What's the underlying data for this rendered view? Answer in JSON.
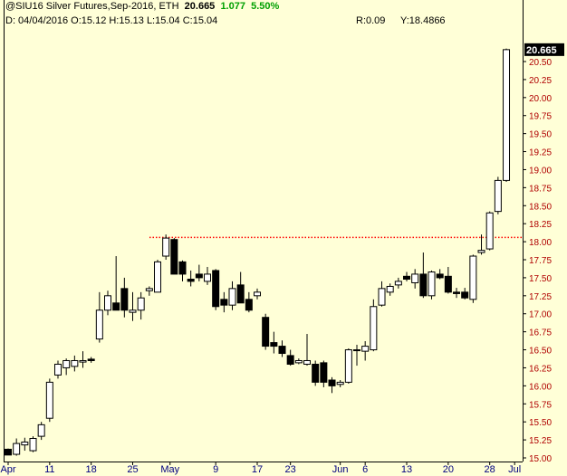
{
  "header": {
    "symbol_line": "@SIU16 Silver Futures,Sep-2016, ETH",
    "last": "20.665",
    "change": "1.077",
    "change_pct": "5.50%",
    "ohlc_line": "D: 04/04/2016 O:15.12 H:15.13 L:15.04 C:15.04",
    "r_value": "R:0.09",
    "y_value": "Y:18.4866"
  },
  "colors": {
    "background": "#ffffd7",
    "axis_text": "#b00000",
    "date_text": "#000080",
    "up_candle": "#ffffff",
    "down_candle": "#000000",
    "reference_line": "#ff0000",
    "last_price_box": "#000000"
  },
  "chart_data": {
    "type": "candlestick",
    "ylim": [
      15.0,
      20.75
    ],
    "yticks": [
      "15.00",
      "15.25",
      "15.50",
      "15.75",
      "16.00",
      "16.25",
      "16.50",
      "16.75",
      "17.00",
      "17.25",
      "17.50",
      "17.75",
      "18.00",
      "18.25",
      "18.50",
      "18.75",
      "19.00",
      "19.25",
      "19.50",
      "19.75",
      "20.00",
      "20.25",
      "20.50"
    ],
    "last_price_label": "20.665",
    "reference_line": 18.06,
    "x_labels": [
      "Apr",
      "11",
      "18",
      "25",
      "May",
      "9",
      "17",
      "23",
      "Jun",
      "6",
      "13",
      "20",
      "28",
      "Jul"
    ],
    "candles": [
      {
        "o": 15.12,
        "h": 15.13,
        "l": 15.04,
        "c": 15.04
      },
      {
        "o": 15.05,
        "h": 15.27,
        "l": 15.03,
        "c": 15.2
      },
      {
        "o": 15.18,
        "h": 15.28,
        "l": 15.1,
        "c": 15.22
      },
      {
        "o": 15.1,
        "h": 15.3,
        "l": 15.08,
        "c": 15.27
      },
      {
        "o": 15.3,
        "h": 15.5,
        "l": 15.25,
        "c": 15.46
      },
      {
        "o": 15.55,
        "h": 16.1,
        "l": 15.5,
        "c": 16.05
      },
      {
        "o": 16.15,
        "h": 16.35,
        "l": 16.1,
        "c": 16.3
      },
      {
        "o": 16.25,
        "h": 16.38,
        "l": 16.15,
        "c": 16.35
      },
      {
        "o": 16.27,
        "h": 16.42,
        "l": 16.2,
        "c": 16.35
      },
      {
        "o": 16.33,
        "h": 16.48,
        "l": 16.25,
        "c": 16.35
      },
      {
        "o": 16.37,
        "h": 16.4,
        "l": 16.32,
        "c": 16.35
      },
      {
        "o": 16.65,
        "h": 17.3,
        "l": 16.6,
        "c": 17.05
      },
      {
        "o": 17.05,
        "h": 17.32,
        "l": 16.98,
        "c": 17.25
      },
      {
        "o": 17.15,
        "h": 17.8,
        "l": 17.05,
        "c": 17.05
      },
      {
        "o": 17.35,
        "h": 17.5,
        "l": 16.95,
        "c": 17.05
      },
      {
        "o": 17.02,
        "h": 17.3,
        "l": 16.9,
        "c": 17.05
      },
      {
        "o": 17.05,
        "h": 17.3,
        "l": 16.92,
        "c": 17.22
      },
      {
        "o": 17.32,
        "h": 17.38,
        "l": 17.25,
        "c": 17.35
      },
      {
        "o": 17.3,
        "h": 17.75,
        "l": 17.3,
        "c": 17.72
      },
      {
        "o": 17.8,
        "h": 18.1,
        "l": 17.75,
        "c": 18.05
      },
      {
        "o": 18.03,
        "h": 18.05,
        "l": 17.55,
        "c": 17.55
      },
      {
        "o": 17.72,
        "h": 17.74,
        "l": 17.45,
        "c": 17.55
      },
      {
        "o": 17.48,
        "h": 17.6,
        "l": 17.38,
        "c": 17.45
      },
      {
        "o": 17.55,
        "h": 17.68,
        "l": 17.45,
        "c": 17.5
      },
      {
        "o": 17.45,
        "h": 17.65,
        "l": 17.4,
        "c": 17.55
      },
      {
        "o": 17.6,
        "h": 17.62,
        "l": 17.05,
        "c": 17.1
      },
      {
        "o": 17.2,
        "h": 17.3,
        "l": 17.02,
        "c": 17.12
      },
      {
        "o": 17.12,
        "h": 17.45,
        "l": 17.05,
        "c": 17.35
      },
      {
        "o": 17.4,
        "h": 17.58,
        "l": 17.15,
        "c": 17.15
      },
      {
        "o": 17.2,
        "h": 17.3,
        "l": 17.02,
        "c": 17.05
      },
      {
        "o": 17.25,
        "h": 17.35,
        "l": 17.2,
        "c": 17.3
      },
      {
        "o": 16.95,
        "h": 17.0,
        "l": 16.5,
        "c": 16.55
      },
      {
        "o": 16.6,
        "h": 16.75,
        "l": 16.45,
        "c": 16.55
      },
      {
        "o": 16.55,
        "h": 16.63,
        "l": 16.4,
        "c": 16.45
      },
      {
        "o": 16.42,
        "h": 16.5,
        "l": 16.28,
        "c": 16.3
      },
      {
        "o": 16.32,
        "h": 16.38,
        "l": 16.3,
        "c": 16.35
      },
      {
        "o": 16.3,
        "h": 16.72,
        "l": 16.28,
        "c": 16.35
      },
      {
        "o": 16.3,
        "h": 16.35,
        "l": 16.0,
        "c": 16.05
      },
      {
        "o": 16.32,
        "h": 16.35,
        "l": 15.98,
        "c": 16.05
      },
      {
        "o": 16.08,
        "h": 16.12,
        "l": 15.9,
        "c": 16.0
      },
      {
        "o": 16.02,
        "h": 16.08,
        "l": 15.98,
        "c": 16.05
      },
      {
        "o": 16.05,
        "h": 16.52,
        "l": 16.03,
        "c": 16.5
      },
      {
        "o": 16.5,
        "h": 16.57,
        "l": 16.28,
        "c": 16.5
      },
      {
        "o": 16.48,
        "h": 16.62,
        "l": 16.35,
        "c": 16.55
      },
      {
        "o": 16.5,
        "h": 17.2,
        "l": 16.48,
        "c": 17.1
      },
      {
        "o": 17.12,
        "h": 17.45,
        "l": 17.1,
        "c": 17.35
      },
      {
        "o": 17.3,
        "h": 17.42,
        "l": 17.25,
        "c": 17.38
      },
      {
        "o": 17.4,
        "h": 17.5,
        "l": 17.35,
        "c": 17.45
      },
      {
        "o": 17.52,
        "h": 17.58,
        "l": 17.45,
        "c": 17.48
      },
      {
        "o": 17.43,
        "h": 17.62,
        "l": 17.35,
        "c": 17.55
      },
      {
        "o": 17.55,
        "h": 17.85,
        "l": 17.22,
        "c": 17.25
      },
      {
        "o": 17.25,
        "h": 17.6,
        "l": 17.2,
        "c": 17.58
      },
      {
        "o": 17.55,
        "h": 17.62,
        "l": 17.48,
        "c": 17.5
      },
      {
        "o": 17.52,
        "h": 17.65,
        "l": 17.28,
        "c": 17.3
      },
      {
        "o": 17.3,
        "h": 17.36,
        "l": 17.22,
        "c": 17.28
      },
      {
        "o": 17.3,
        "h": 17.36,
        "l": 17.2,
        "c": 17.22
      },
      {
        "o": 17.2,
        "h": 17.82,
        "l": 17.15,
        "c": 17.8
      },
      {
        "o": 17.85,
        "h": 18.1,
        "l": 17.82,
        "c": 17.88
      },
      {
        "o": 17.9,
        "h": 18.42,
        "l": 17.88,
        "c": 18.4
      },
      {
        "o": 18.42,
        "h": 18.9,
        "l": 18.38,
        "c": 18.85
      },
      {
        "o": 18.85,
        "h": 20.68,
        "l": 18.83,
        "c": 20.665
      }
    ]
  }
}
